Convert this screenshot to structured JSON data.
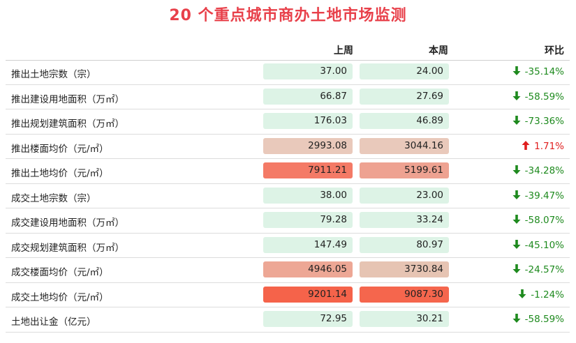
{
  "title": "20 个重点城市商办土地市场监测",
  "headers": {
    "prev": "上周",
    "cur": "本周",
    "change": "环比"
  },
  "colors": {
    "down": "#1e8a1e",
    "up": "#e01e1e",
    "title": "#e8404a"
  },
  "rows": [
    {
      "label": "推出土地宗数（宗）",
      "prev": "37.00",
      "cur": "24.00",
      "change": "-35.14%",
      "dir": "down",
      "prevBg": "#ddf3e6",
      "curBg": "#ddf3e6"
    },
    {
      "label": "推出建设用地面积（万㎡）",
      "prev": "66.87",
      "cur": "27.69",
      "change": "-58.59%",
      "dir": "down",
      "prevBg": "#ddf3e6",
      "curBg": "#ddf3e6"
    },
    {
      "label": "推出规划建筑面积（万㎡）",
      "prev": "176.03",
      "cur": "46.89",
      "change": "-73.36%",
      "dir": "down",
      "prevBg": "#ddf3e6",
      "curBg": "#ddf3e6"
    },
    {
      "label": "推出楼面均价（元/㎡）",
      "prev": "2993.08",
      "cur": "3044.16",
      "change": "1.71%",
      "dir": "up",
      "prevBg": "#e9c9bb",
      "curBg": "#e9c9bb"
    },
    {
      "label": "推出土地均价（元/㎡）",
      "prev": "7911.21",
      "cur": "5199.61",
      "change": "-34.28%",
      "dir": "down",
      "prevBg": "#f47a66",
      "curBg": "#eea291"
    },
    {
      "label": "成交土地宗数（宗）",
      "prev": "38.00",
      "cur": "23.00",
      "change": "-39.47%",
      "dir": "down",
      "prevBg": "#ddf3e6",
      "curBg": "#ddf3e6"
    },
    {
      "label": "成交建设用地面积（万㎡）",
      "prev": "79.28",
      "cur": "33.24",
      "change": "-58.07%",
      "dir": "down",
      "prevBg": "#ddf3e6",
      "curBg": "#ddf3e6"
    },
    {
      "label": "成交规划建筑面积（万㎡）",
      "prev": "147.49",
      "cur": "80.97",
      "change": "-45.10%",
      "dir": "down",
      "prevBg": "#ddf3e6",
      "curBg": "#ddf3e6"
    },
    {
      "label": "成交楼面均价（元/㎡）",
      "prev": "4946.05",
      "cur": "3730.84",
      "change": "-24.57%",
      "dir": "down",
      "prevBg": "#eda795",
      "curBg": "#e6c4b3"
    },
    {
      "label": "成交土地均价（元/㎡）",
      "prev": "9201.14",
      "cur": "9087.30",
      "change": "-1.24%",
      "dir": "down",
      "prevBg": "#f5634a",
      "curBg": "#f5664d"
    },
    {
      "label": "土地出让金（亿元）",
      "prev": "72.95",
      "cur": "30.21",
      "change": "-58.59%",
      "dir": "down",
      "prevBg": "#ddf3e6",
      "curBg": "#ddf3e6"
    }
  ]
}
